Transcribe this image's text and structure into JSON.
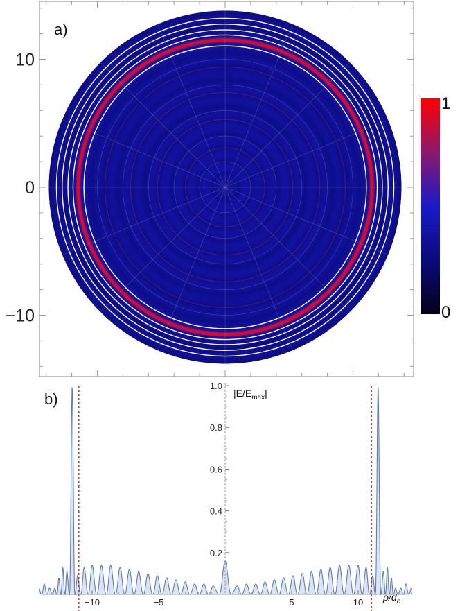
{
  "chart_data": [
    {
      "type": "heatmap",
      "panel_label": "a)",
      "projection": "polar",
      "xlim": [
        -14.8,
        14.8
      ],
      "ylim": [
        -14.8,
        14.8
      ],
      "disk_radius": 13.8,
      "yticks": [
        10,
        0,
        -10
      ],
      "ytick_labels": [
        "10",
        "0",
        "−10"
      ],
      "grid": true,
      "polar_grid_spokes": 16,
      "polar_grid_rings": [
        2,
        4,
        6,
        8,
        10
      ],
      "colorbar": {
        "min": 0,
        "max": 1,
        "tick_labels": [
          "1",
          "0"
        ],
        "colors": [
          "#05001a",
          "#0a0a7a",
          "#1a1ac8",
          "#8a1a6a",
          "#ff0000"
        ]
      },
      "bright_ring_radius": 11.5,
      "white_contour_radii": [
        11.05,
        11.9,
        12.3,
        12.75,
        13.2
      ],
      "background_ring_amplitudes": [
        0.1,
        0.18,
        0.14,
        0.16,
        0.13,
        0.15,
        0.12,
        0.14,
        0.11,
        0.12
      ]
    },
    {
      "type": "area",
      "panel_label": "b)",
      "ylabel": "|E/E",
      "ylabel_sub": "max",
      "ylabel_end": "|",
      "xlabel": "ρ/d",
      "xlabel_sub": "o",
      "xlim": [
        -14.4,
        14.4
      ],
      "ylim": [
        0,
        1.0
      ],
      "xticks": [
        -10,
        -5,
        5,
        10
      ],
      "xtick_labels": [
        "−10",
        "−5",
        "5",
        "10"
      ],
      "yticks": [
        0.2,
        0.4,
        0.6,
        0.8,
        1.0
      ],
      "ytick_labels": [
        "0.2",
        "0.4",
        "0.6",
        "0.8",
        "1.0"
      ],
      "reference_lines": [
        -11.0,
        11.0
      ],
      "x": [
        -14.0,
        -13.6,
        -13.2,
        -12.8,
        -12.5,
        -12.2,
        -11.9,
        -11.5,
        -11.1,
        -10.6,
        -10.0,
        -9.3,
        -8.6,
        -7.9,
        -7.2,
        -6.5,
        -5.8,
        -5.1,
        -4.4,
        -3.7,
        -3.0,
        -2.3,
        -1.6,
        -0.9,
        0.0,
        0.9,
        1.6,
        2.3,
        3.0,
        3.7,
        4.4,
        5.1,
        5.8,
        6.5,
        7.2,
        7.9,
        8.6,
        9.3,
        10.0,
        10.6,
        11.1,
        11.5,
        11.9,
        12.2,
        12.5,
        12.8,
        13.2,
        13.6,
        14.0
      ],
      "y": [
        0.03,
        0.05,
        0.03,
        0.03,
        0.08,
        0.13,
        0.11,
        1.0,
        0.09,
        0.13,
        0.14,
        0.14,
        0.14,
        0.13,
        0.12,
        0.11,
        0.1,
        0.09,
        0.08,
        0.07,
        0.06,
        0.05,
        0.05,
        0.04,
        0.16,
        0.04,
        0.05,
        0.05,
        0.06,
        0.07,
        0.08,
        0.09,
        0.1,
        0.11,
        0.12,
        0.13,
        0.14,
        0.14,
        0.14,
        0.13,
        0.09,
        1.0,
        0.11,
        0.13,
        0.08,
        0.03,
        0.03,
        0.05,
        0.03
      ]
    }
  ]
}
